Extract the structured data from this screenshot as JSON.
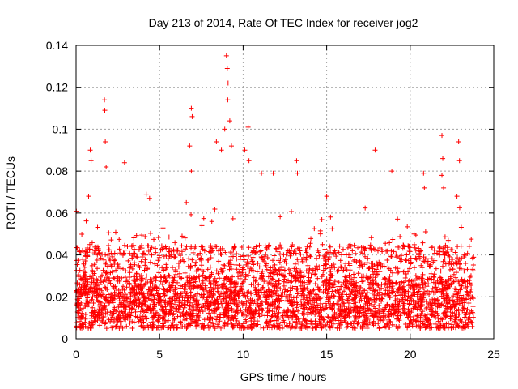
{
  "chart_data": {
    "type": "scatter",
    "title": "Day 213 of 2014, Rate Of TEC Index for receiver jog2",
    "xlabel": "GPS time / hours",
    "ylabel": "ROTI / TECUs",
    "xlim": [
      0,
      25
    ],
    "ylim": [
      0,
      0.14
    ],
    "xticks": [
      0,
      5,
      10,
      15,
      20,
      25
    ],
    "xtick_labels": [
      "0",
      "5",
      "10",
      "15",
      "20",
      "25"
    ],
    "yticks": [
      0,
      0.02,
      0.04,
      0.06,
      0.08,
      0.1,
      0.12,
      0.14
    ],
    "ytick_labels": [
      "0",
      "0.02",
      "0.04",
      "0.06",
      "0.08",
      "0.1",
      "0.12",
      "0.14"
    ],
    "grid": true,
    "marker": "+",
    "color": "#ff0000",
    "data_range_hours": [
      0,
      23.8
    ],
    "bulk_band": [
      0.005,
      0.045
    ],
    "spikes": [
      {
        "x": 0.9,
        "y": 0.085
      },
      {
        "x": 0.85,
        "y": 0.09
      },
      {
        "x": 0.75,
        "y": 0.068
      },
      {
        "x": 1.7,
        "y": 0.114
      },
      {
        "x": 1.72,
        "y": 0.109
      },
      {
        "x": 1.75,
        "y": 0.094
      },
      {
        "x": 1.8,
        "y": 0.082
      },
      {
        "x": 2.9,
        "y": 0.084
      },
      {
        "x": 4.2,
        "y": 0.069
      },
      {
        "x": 4.4,
        "y": 0.067
      },
      {
        "x": 6.6,
        "y": 0.065
      },
      {
        "x": 6.9,
        "y": 0.11
      },
      {
        "x": 6.95,
        "y": 0.106
      },
      {
        "x": 6.8,
        "y": 0.092
      },
      {
        "x": 6.9,
        "y": 0.08
      },
      {
        "x": 8.4,
        "y": 0.094
      },
      {
        "x": 8.7,
        "y": 0.09
      },
      {
        "x": 8.9,
        "y": 0.1
      },
      {
        "x": 9.0,
        "y": 0.135
      },
      {
        "x": 9.05,
        "y": 0.129
      },
      {
        "x": 9.1,
        "y": 0.122
      },
      {
        "x": 9.08,
        "y": 0.114
      },
      {
        "x": 9.2,
        "y": 0.104
      },
      {
        "x": 9.3,
        "y": 0.092
      },
      {
        "x": 10.3,
        "y": 0.101
      },
      {
        "x": 10.35,
        "y": 0.085
      },
      {
        "x": 10.1,
        "y": 0.09
      },
      {
        "x": 11.1,
        "y": 0.079
      },
      {
        "x": 11.8,
        "y": 0.079
      },
      {
        "x": 13.2,
        "y": 0.085
      },
      {
        "x": 13.25,
        "y": 0.079
      },
      {
        "x": 15.0,
        "y": 0.068
      },
      {
        "x": 17.9,
        "y": 0.09
      },
      {
        "x": 18.9,
        "y": 0.08
      },
      {
        "x": 20.8,
        "y": 0.079
      },
      {
        "x": 20.85,
        "y": 0.072
      },
      {
        "x": 21.9,
        "y": 0.097
      },
      {
        "x": 21.95,
        "y": 0.086
      },
      {
        "x": 21.9,
        "y": 0.078
      },
      {
        "x": 22.0,
        "y": 0.072
      },
      {
        "x": 22.9,
        "y": 0.094
      },
      {
        "x": 22.95,
        "y": 0.085
      },
      {
        "x": 22.8,
        "y": 0.068
      }
    ]
  }
}
